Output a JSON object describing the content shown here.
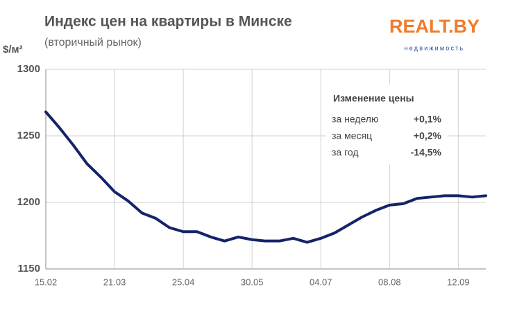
{
  "chart_data": {
    "type": "line",
    "title": "Индекс цен на квартиры в Минске",
    "subtitle": "(вторичный рынок)",
    "y_label": "$/м²",
    "logo": {
      "text": "REALT.BY",
      "subtext": "недвижимость"
    },
    "annotation": {
      "title": "Изменение цены",
      "rows": [
        [
          "за неделю",
          "+0,1%"
        ],
        [
          "за месяц",
          "+0,2%"
        ],
        [
          "за год",
          "-14,5%"
        ]
      ]
    },
    "categories": [
      "15.02",
      null,
      null,
      null,
      null,
      "21.03",
      null,
      null,
      null,
      null,
      "25.04",
      null,
      null,
      null,
      null,
      "30.05",
      null,
      null,
      null,
      null,
      "04.07",
      null,
      null,
      null,
      null,
      "08.08",
      null,
      null,
      null,
      null,
      "12.09",
      null,
      null
    ],
    "series": [
      {
        "name": "Индекс цен",
        "color": "#15236b",
        "values": [
          1268,
          1256,
          1243,
          1229,
          1219,
          1208,
          1201,
          1192,
          1188,
          1181,
          1178,
          1178,
          1174,
          1171,
          1174,
          1172,
          1171,
          1171,
          1173,
          1170,
          1173,
          1177,
          1183,
          1189,
          1194,
          1198,
          1199,
          1203,
          1204,
          1205,
          1205,
          1204,
          1205
        ]
      }
    ],
    "ylim": [
      1150,
      1300
    ],
    "yticks": [
      1150,
      1200,
      1250,
      1300
    ],
    "grid": true
  }
}
